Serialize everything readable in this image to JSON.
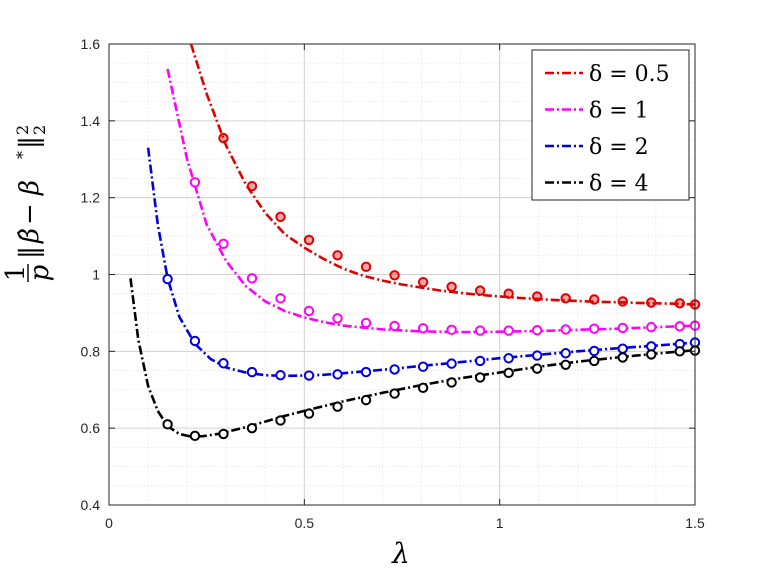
{
  "chart_data": {
    "type": "line",
    "xlabel": "λ",
    "ylabel_parts": [
      "1",
      "p",
      "‖",
      "β̂",
      " − β",
      "*",
      "‖",
      "2",
      "2"
    ],
    "xlim": [
      0,
      1.5
    ],
    "ylim": [
      0.4,
      1.6
    ],
    "x_ticks": [
      0,
      0.5,
      1,
      1.5
    ],
    "x_tick_labels": [
      "0",
      "0.5",
      "1",
      "1.5"
    ],
    "y_ticks": [
      0.4,
      0.6,
      0.8,
      1.0,
      1.2,
      1.4,
      1.6
    ],
    "y_tick_labels": [
      "0.4",
      "0.6",
      "0.8",
      "1",
      "1.2",
      "1.4",
      "1.6"
    ],
    "grid": true,
    "minor_grid": true,
    "legend_position": "top-right",
    "series": [
      {
        "name": "δ = 0.5",
        "color": "#e00000",
        "line_x": [
          0.21,
          0.25,
          0.3,
          0.35,
          0.4,
          0.45,
          0.5,
          0.55,
          0.6,
          0.65,
          0.7,
          0.75,
          0.8,
          0.85,
          0.9,
          0.95,
          1.0,
          1.05,
          1.1,
          1.15,
          1.2,
          1.25,
          1.3,
          1.35,
          1.4,
          1.45,
          1.5
        ],
        "line_y": [
          1.6,
          1.47,
          1.335,
          1.235,
          1.16,
          1.105,
          1.07,
          1.04,
          1.015,
          0.997,
          0.984,
          0.974,
          0.966,
          0.958,
          0.952,
          0.947,
          0.943,
          0.939,
          0.936,
          0.933,
          0.931,
          0.929,
          0.928,
          0.926,
          0.925,
          0.924,
          0.922
        ],
        "marker_x": [
          0.293,
          0.366,
          0.439,
          0.512,
          0.585,
          0.658,
          0.731,
          0.804,
          0.877,
          0.95,
          1.023,
          1.096,
          1.169,
          1.242,
          1.315,
          1.388,
          1.461,
          1.5
        ],
        "marker_y": [
          1.355,
          1.23,
          1.15,
          1.09,
          1.05,
          1.02,
          0.998,
          0.98,
          0.968,
          0.958,
          0.95,
          0.943,
          0.938,
          0.935,
          0.93,
          0.927,
          0.925,
          0.922
        ],
        "marker_fill": true
      },
      {
        "name": "δ = 1",
        "color": "#ff00ff",
        "line_x": [
          0.15,
          0.2,
          0.25,
          0.3,
          0.35,
          0.4,
          0.45,
          0.5,
          0.55,
          0.6,
          0.7,
          0.8,
          0.9,
          1.0,
          1.1,
          1.2,
          1.3,
          1.4,
          1.5
        ],
        "line_y": [
          1.535,
          1.3,
          1.13,
          1.035,
          0.97,
          0.93,
          0.905,
          0.888,
          0.876,
          0.867,
          0.857,
          0.852,
          0.85,
          0.851,
          0.853,
          0.856,
          0.859,
          0.863,
          0.867
        ],
        "marker_x": [
          0.22,
          0.293,
          0.366,
          0.439,
          0.512,
          0.585,
          0.658,
          0.731,
          0.804,
          0.877,
          0.95,
          1.023,
          1.096,
          1.169,
          1.242,
          1.315,
          1.388,
          1.461,
          1.5
        ],
        "marker_y": [
          1.24,
          1.08,
          0.99,
          0.938,
          0.905,
          0.886,
          0.874,
          0.866,
          0.86,
          0.856,
          0.854,
          0.854,
          0.855,
          0.857,
          0.859,
          0.861,
          0.863,
          0.865,
          0.867
        ],
        "marker_fill": false
      },
      {
        "name": "δ = 2",
        "color": "#0000e0",
        "line_x": [
          0.1,
          0.125,
          0.15,
          0.18,
          0.22,
          0.26,
          0.3,
          0.35,
          0.4,
          0.45,
          0.5,
          0.55,
          0.6,
          0.7,
          0.8,
          0.9,
          1.0,
          1.1,
          1.2,
          1.3,
          1.4,
          1.5
        ],
        "line_y": [
          1.33,
          1.13,
          0.99,
          0.89,
          0.82,
          0.78,
          0.758,
          0.745,
          0.738,
          0.736,
          0.737,
          0.739,
          0.743,
          0.752,
          0.762,
          0.772,
          0.782,
          0.791,
          0.8,
          0.808,
          0.815,
          0.823
        ],
        "marker_x": [
          0.15,
          0.22,
          0.293,
          0.366,
          0.439,
          0.512,
          0.585,
          0.658,
          0.731,
          0.804,
          0.877,
          0.95,
          1.023,
          1.096,
          1.169,
          1.242,
          1.315,
          1.388,
          1.461,
          1.5
        ],
        "marker_y": [
          0.988,
          0.827,
          0.769,
          0.746,
          0.738,
          0.737,
          0.74,
          0.746,
          0.753,
          0.76,
          0.768,
          0.775,
          0.782,
          0.789,
          0.795,
          0.801,
          0.807,
          0.813,
          0.819,
          0.823
        ],
        "marker_fill": false
      },
      {
        "name": "δ = 4",
        "color": "#000000",
        "line_x": [
          0.055,
          0.075,
          0.1,
          0.125,
          0.15,
          0.18,
          0.21,
          0.24,
          0.28,
          0.32,
          0.36,
          0.4,
          0.45,
          0.5,
          0.6,
          0.7,
          0.8,
          0.9,
          1.0,
          1.1,
          1.2,
          1.3,
          1.4,
          1.5
        ],
        "line_y": [
          0.99,
          0.83,
          0.71,
          0.645,
          0.605,
          0.585,
          0.578,
          0.579,
          0.585,
          0.595,
          0.605,
          0.617,
          0.632,
          0.645,
          0.67,
          0.692,
          0.712,
          0.73,
          0.745,
          0.76,
          0.773,
          0.784,
          0.794,
          0.803
        ],
        "marker_x": [
          0.15,
          0.22,
          0.293,
          0.366,
          0.439,
          0.512,
          0.585,
          0.658,
          0.731,
          0.804,
          0.877,
          0.95,
          1.023,
          1.096,
          1.169,
          1.242,
          1.315,
          1.388,
          1.461,
          1.5
        ],
        "marker_y": [
          0.61,
          0.58,
          0.585,
          0.6,
          0.62,
          0.638,
          0.656,
          0.673,
          0.69,
          0.705,
          0.719,
          0.732,
          0.744,
          0.755,
          0.765,
          0.775,
          0.784,
          0.792,
          0.8,
          0.802
        ],
        "marker_fill": false
      }
    ]
  }
}
